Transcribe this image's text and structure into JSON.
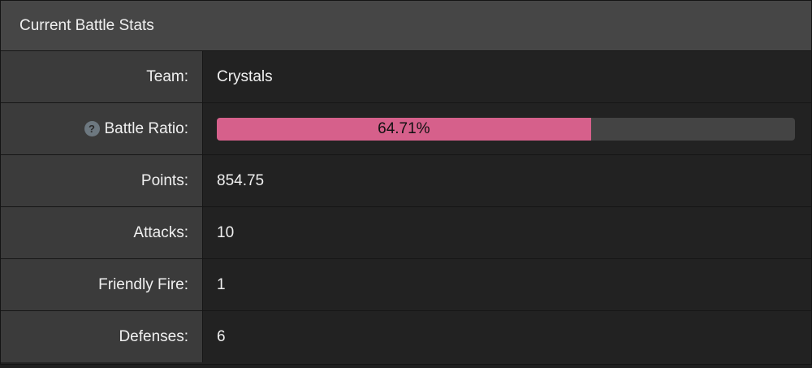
{
  "panel": {
    "title": "Current Battle Stats",
    "rows": [
      {
        "label": "Team:",
        "value": "Crystals"
      },
      {
        "label": "Battle Ratio:",
        "icon": "?",
        "progress": {
          "value": 64.71,
          "label": "64.71%",
          "range": [
            0,
            100
          ]
        }
      },
      {
        "label": "Points:",
        "value": "854.75"
      },
      {
        "label": "Attacks:",
        "value": "10"
      },
      {
        "label": "Friendly Fire:",
        "value": "1"
      },
      {
        "label": "Defenses:",
        "value": "6"
      }
    ]
  }
}
